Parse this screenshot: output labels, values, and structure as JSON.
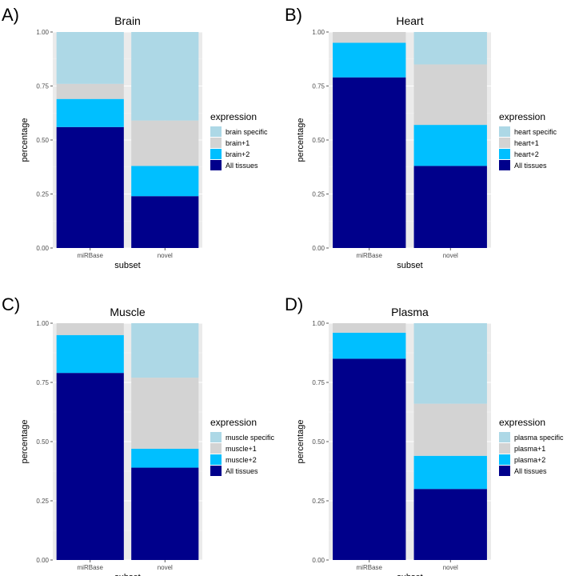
{
  "colors": {
    "specific": "#add8e6",
    "plus1": "#d3d3d3",
    "plus2": "#00bfff",
    "all": "#00008b",
    "panel_bg": "#ebebeb",
    "grid_major": "#ffffff",
    "grid_minor": "#f5f5f5"
  },
  "chart_data": [
    {
      "type": "bar",
      "letter": "A)",
      "title": "Brain",
      "xlabel": "subset",
      "ylabel": "percentage",
      "ylim": [
        0,
        1
      ],
      "yticks": [
        "0.00",
        "0.25",
        "0.50",
        "0.75",
        "1.00"
      ],
      "categories": [
        "miRBase",
        "novel"
      ],
      "legend_title": "expression",
      "series": [
        {
          "name": "All tissues",
          "key": "all",
          "values": [
            0.56,
            0.24
          ]
        },
        {
          "name": "brain+2",
          "key": "plus2",
          "values": [
            0.13,
            0.14
          ]
        },
        {
          "name": "brain+1",
          "key": "plus1",
          "values": [
            0.07,
            0.21
          ]
        },
        {
          "name": "brain specific",
          "key": "specific",
          "values": [
            0.24,
            0.41
          ]
        }
      ]
    },
    {
      "type": "bar",
      "letter": "B)",
      "title": "Heart",
      "xlabel": "subset",
      "ylabel": "percentage",
      "ylim": [
        0,
        1
      ],
      "yticks": [
        "0.00",
        "0.25",
        "0.50",
        "0.75",
        "1.00"
      ],
      "categories": [
        "miRBase",
        "novel"
      ],
      "legend_title": "expression",
      "series": [
        {
          "name": "All tissues",
          "key": "all",
          "values": [
            0.79,
            0.38
          ]
        },
        {
          "name": "heart+2",
          "key": "plus2",
          "values": [
            0.16,
            0.19
          ]
        },
        {
          "name": "heart+1",
          "key": "plus1",
          "values": [
            0.05,
            0.28
          ]
        },
        {
          "name": "heart specific",
          "key": "specific",
          "values": [
            0.0,
            0.15
          ]
        }
      ]
    },
    {
      "type": "bar",
      "letter": "C)",
      "title": "Muscle",
      "xlabel": "subset",
      "ylabel": "percentage",
      "ylim": [
        0,
        1
      ],
      "yticks": [
        "0.00",
        "0.25",
        "0.50",
        "0.75",
        "1.00"
      ],
      "categories": [
        "miRBase",
        "novel"
      ],
      "legend_title": "expression",
      "series": [
        {
          "name": "All tissues",
          "key": "all",
          "values": [
            0.79,
            0.39
          ]
        },
        {
          "name": "muscle+2",
          "key": "plus2",
          "values": [
            0.16,
            0.08
          ]
        },
        {
          "name": "muscle+1",
          "key": "plus1",
          "values": [
            0.05,
            0.3
          ]
        },
        {
          "name": "muscle specific",
          "key": "specific",
          "values": [
            0.0,
            0.23
          ]
        }
      ]
    },
    {
      "type": "bar",
      "letter": "D)",
      "title": "Plasma",
      "xlabel": "subset",
      "ylabel": "percentage",
      "ylim": [
        0,
        1
      ],
      "yticks": [
        "0.00",
        "0.25",
        "0.50",
        "0.75",
        "1.00"
      ],
      "categories": [
        "miRBase",
        "novel"
      ],
      "legend_title": "expression",
      "series": [
        {
          "name": "All tissues",
          "key": "all",
          "values": [
            0.85,
            0.3
          ]
        },
        {
          "name": "plasma+2",
          "key": "plus2",
          "values": [
            0.11,
            0.14
          ]
        },
        {
          "name": "plasma+1",
          "key": "plus1",
          "values": [
            0.04,
            0.22
          ]
        },
        {
          "name": "plasma specific",
          "key": "specific",
          "values": [
            0.0,
            0.34
          ]
        }
      ]
    }
  ]
}
